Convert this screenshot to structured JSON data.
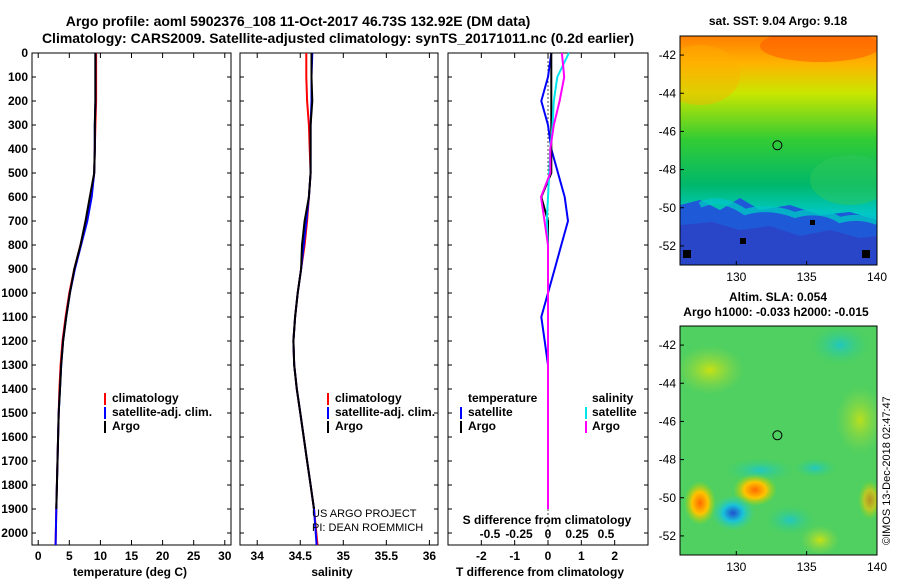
{
  "title": {
    "line1": "Argo profile: aoml 5902376_108 11-Oct-2017 46.73S 132.92E (DM data)",
    "line2": "Climatology: CARS2009. Satellite-adjusted climatology: synTS_20171011.nc (0.2d earlier)"
  },
  "chart_data": [
    {
      "type": "line",
      "name": "temperature profile",
      "xlabel": "temperature (deg C)",
      "ylabel": "",
      "xlim": [
        -1,
        31
      ],
      "ylim": [
        2050,
        0
      ],
      "xticks": [
        0,
        5,
        10,
        15,
        20,
        25,
        30
      ],
      "xtick_labels": [
        "0",
        "5",
        "10",
        "15",
        "20",
        "25",
        "30"
      ],
      "yticks": [
        0,
        100,
        200,
        300,
        400,
        500,
        600,
        700,
        800,
        900,
        1000,
        1100,
        1200,
        1300,
        1400,
        1500,
        1600,
        1700,
        1800,
        1900,
        2000
      ],
      "ytick_labels": [
        "0",
        "100",
        "200",
        "300",
        "400",
        "500",
        "600",
        "700",
        "800",
        "900",
        "1000",
        "1100",
        "1200",
        "1300",
        "1400",
        "1500",
        "1600",
        "1700",
        "1800",
        "1900",
        "2000"
      ],
      "legend": [
        "climatology",
        "satellite-adj. clim.",
        "Argo"
      ],
      "series": [
        {
          "name": "climatology",
          "color": "#ff0000",
          "x": [
            9.3,
            9.3,
            9.3,
            9.2,
            9.1,
            9.0,
            8.5,
            7.7,
            6.8,
            5.8,
            5.0,
            4.4,
            3.9,
            3.6,
            3.4,
            3.3,
            3.2,
            3.1,
            3.0,
            2.9,
            2.8
          ],
          "y": [
            0,
            100,
            200,
            300,
            400,
            500,
            600,
            700,
            800,
            900,
            1000,
            1100,
            1200,
            1300,
            1400,
            1500,
            1600,
            1700,
            1800,
            1900,
            2050
          ]
        },
        {
          "name": "satellite-adj. clim.",
          "color": "#0000ff",
          "x": [
            9.2,
            9.2,
            9.2,
            9.1,
            9.1,
            9.0,
            8.6,
            7.9,
            6.9,
            5.9,
            5.1,
            4.5,
            4.0,
            3.7,
            3.5,
            3.3,
            3.2,
            3.1,
            3.0,
            2.9,
            2.8
          ],
          "y": [
            0,
            100,
            200,
            300,
            400,
            500,
            600,
            700,
            800,
            900,
            1000,
            1100,
            1200,
            1300,
            1400,
            1500,
            1600,
            1700,
            1800,
            1900,
            2050
          ]
        },
        {
          "name": "Argo",
          "color": "#000000",
          "x": [
            9.2,
            9.2,
            9.2,
            9.1,
            9.1,
            9.0,
            8.3,
            7.6,
            6.8,
            5.8,
            5.1,
            4.5,
            4.0,
            3.7,
            3.5,
            3.3,
            3.2,
            3.1,
            3.0,
            2.9
          ],
          "y": [
            0,
            100,
            200,
            300,
            400,
            500,
            600,
            700,
            800,
            900,
            1000,
            1100,
            1200,
            1300,
            1400,
            1500,
            1600,
            1700,
            1800,
            1900
          ]
        }
      ]
    },
    {
      "type": "line",
      "name": "salinity profile",
      "xlabel": "salinity",
      "xlim": [
        33.8,
        36.1
      ],
      "ylim": [
        2050,
        0
      ],
      "xticks": [
        34,
        34.5,
        35,
        35.5,
        36
      ],
      "xtick_labels": [
        "34",
        "34.5",
        "35",
        "35.5",
        "36"
      ],
      "legend": [
        "climatology",
        "satellite-adj. clim.",
        "Argo"
      ],
      "annotation": [
        "US ARGO PROJECT",
        "PI: DEAN ROEMMICH"
      ],
      "series": [
        {
          "name": "climatology",
          "color": "#ff0000",
          "x": [
            34.57,
            34.57,
            34.58,
            34.6,
            34.61,
            34.62,
            34.6,
            34.58,
            34.55,
            34.51,
            34.47,
            34.44,
            34.42,
            34.43,
            34.46,
            34.5,
            34.54,
            34.58,
            34.62,
            34.66,
            34.7
          ],
          "y": [
            0,
            100,
            200,
            300,
            400,
            500,
            600,
            700,
            800,
            900,
            1000,
            1100,
            1200,
            1300,
            1400,
            1500,
            1600,
            1700,
            1800,
            1900,
            2050
          ]
        },
        {
          "name": "satellite-adj. clim.",
          "color": "#0000ff",
          "x": [
            34.64,
            34.63,
            34.63,
            34.62,
            34.62,
            34.62,
            34.6,
            34.57,
            34.54,
            34.51,
            34.47,
            34.44,
            34.42,
            34.43,
            34.46,
            34.5,
            34.54,
            34.58,
            34.62,
            34.66,
            34.69
          ],
          "y": [
            0,
            100,
            200,
            300,
            400,
            500,
            600,
            700,
            800,
            900,
            1000,
            1100,
            1200,
            1300,
            1400,
            1500,
            1600,
            1700,
            1800,
            1900,
            2050
          ]
        },
        {
          "name": "Argo",
          "color": "#000000",
          "x": [
            34.63,
            34.63,
            34.64,
            34.62,
            34.62,
            34.62,
            34.6,
            34.55,
            34.52,
            34.51,
            34.47,
            34.44,
            34.42,
            34.43,
            34.46,
            34.5,
            34.54,
            34.58,
            34.62,
            34.66
          ],
          "y": [
            0,
            100,
            200,
            300,
            400,
            500,
            600,
            700,
            800,
            900,
            1000,
            1100,
            1200,
            1300,
            1400,
            1500,
            1600,
            1700,
            1800,
            1900
          ]
        }
      ]
    },
    {
      "type": "line",
      "name": "difference from climatology",
      "xlabel": "T difference from climatology",
      "xlabel_top": "S difference from climatology",
      "xlim": [
        -3,
        3
      ],
      "ylim": [
        2050,
        0
      ],
      "xticks": [
        -2,
        -1,
        0,
        1,
        2
      ],
      "xtick_labels": [
        "-2",
        "-1",
        "0",
        "1",
        "2"
      ],
      "s_ticks": [
        -0.5,
        -0.25,
        0,
        0.25,
        0.5
      ],
      "s_tick_labels": [
        "-0.5",
        "-0.25",
        "0",
        "0.25",
        "0.5"
      ],
      "legend_left_title": "temperature",
      "legend_right_title": "salinity",
      "legend": [
        "satellite",
        "Argo",
        "satellite",
        "Argo"
      ],
      "series": [
        {
          "name": "temperature satellite",
          "color": "#0000ff",
          "x": [
            0.1,
            0.0,
            -0.2,
            0.0,
            0.1,
            0.3,
            0.5,
            0.6,
            0.4,
            0.2,
            0.0,
            -0.2,
            -0.1,
            0.0,
            0.0,
            0.0,
            0.0,
            0.0,
            0.0,
            0.0
          ],
          "y": [
            0,
            100,
            200,
            300,
            400,
            500,
            600,
            700,
            800,
            900,
            1000,
            1100,
            1200,
            1300,
            1400,
            1500,
            1600,
            1700,
            1800,
            1900
          ]
        },
        {
          "name": "temperature Argo",
          "color": "#000000",
          "x": [
            0.1,
            0.1,
            0.1,
            0.1,
            0.1,
            0.1,
            -0.2,
            0.0,
            0.0,
            0.0,
            0.0,
            0.0,
            0.0,
            0.0,
            0.0,
            0.0,
            0.0,
            0.0,
            0.0,
            0.0
          ],
          "y": [
            0,
            100,
            200,
            300,
            400,
            500,
            600,
            700,
            800,
            900,
            1000,
            1100,
            1200,
            1300,
            1400,
            1500,
            1600,
            1700,
            1800,
            1900
          ]
        },
        {
          "name": "salinity satellite",
          "color": "#00e5ee",
          "x": [
            0.18,
            0.08,
            0.05,
            0.04,
            0.02,
            0.01,
            0.0,
            -0.01,
            0.0,
            0.0,
            0.0,
            0.0,
            0.0,
            0.0,
            0.0,
            0.0,
            0.0,
            0.0,
            0.0,
            0.0
          ],
          "y": [
            0,
            100,
            200,
            300,
            400,
            500,
            600,
            700,
            800,
            900,
            1000,
            1100,
            1200,
            1300,
            1400,
            1500,
            1600,
            1700,
            1800,
            1900
          ]
        },
        {
          "name": "salinity Argo",
          "color": "#ff00ff",
          "x": [
            0.12,
            0.14,
            0.1,
            0.05,
            0.02,
            0.02,
            -0.06,
            -0.03,
            0.0,
            0.0,
            0.0,
            0.0,
            0.0,
            0.0,
            0.0,
            0.0,
            0.0,
            0.0,
            0.0,
            0.0
          ],
          "y": [
            0,
            100,
            200,
            300,
            400,
            500,
            600,
            700,
            800,
            900,
            1000,
            1100,
            1200,
            1300,
            1400,
            1500,
            1600,
            1700,
            1800,
            1900
          ]
        }
      ]
    },
    {
      "type": "heatmap",
      "name": "satellite SST map",
      "title": "sat. SST: 9.04 Argo: 9.18",
      "xlim": [
        126,
        140
      ],
      "ylim": [
        -53,
        -41
      ],
      "xticks": [
        130,
        135,
        140
      ],
      "xtick_labels": [
        "130",
        "135",
        "140"
      ],
      "yticks": [
        -42,
        -44,
        -46,
        -48,
        -50,
        -52
      ],
      "ytick_labels": [
        "-42",
        "-44",
        "-46",
        "-48",
        "-50",
        "-52"
      ],
      "marker": {
        "lon": 132.92,
        "lat": -46.73
      }
    },
    {
      "type": "heatmap",
      "name": "altimetry SLA map",
      "title": "Altim. SLA: 0.054",
      "subtitle": "Argo h1000: -0.033 h2000: -0.015",
      "xlim": [
        126,
        140
      ],
      "ylim": [
        -53,
        -41
      ],
      "xticks": [
        130,
        135,
        140
      ],
      "xtick_labels": [
        "130",
        "135",
        "140"
      ],
      "yticks": [
        -42,
        -44,
        -46,
        -48,
        -50,
        -52
      ],
      "ytick_labels": [
        "-42",
        "-44",
        "-46",
        "-48",
        "-50",
        "-52"
      ],
      "marker": {
        "lon": 132.92,
        "lat": -46.73
      }
    }
  ],
  "footer": {
    "credit": "©IMOS 13-Dec-2018 02:47:47"
  },
  "colors": {
    "climatology": "#ff0000",
    "satellite": "#0000ff",
    "argo": "#000000",
    "sal_sat": "#00e5ee",
    "sal_argo": "#ff00ff"
  }
}
